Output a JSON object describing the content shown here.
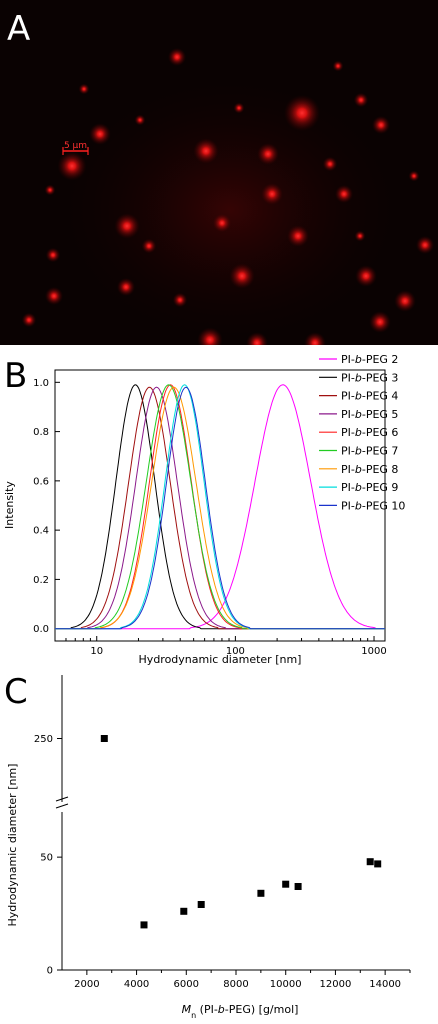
{
  "panels": {
    "a": {
      "letter": "A",
      "scalebar_label": "5 µm"
    },
    "b": {
      "letter": "B"
    },
    "c": {
      "letter": "C"
    }
  },
  "colors": {
    "micro_background": "#0a0202",
    "micro_spot": "#ff1a1a",
    "axis": "#000000"
  },
  "chart_data": [
    {
      "id": "B",
      "type": "line",
      "xscale": "log",
      "xlabel": "Hydrodynamic diameter [nm]",
      "ylabel": "Intensity",
      "xlim": [
        5,
        1200
      ],
      "ylim": [
        -0.05,
        1.05
      ],
      "xticks": [
        10,
        100,
        1000
      ],
      "xtick_labels": [
        "10",
        "100",
        "1000"
      ],
      "yticks": [
        0.0,
        0.2,
        0.4,
        0.6,
        0.8,
        1.0
      ],
      "ytick_labels": [
        "0.0",
        "0.2",
        "0.4",
        "0.6",
        "0.8",
        "1.0"
      ],
      "legend_position": "top-right",
      "series": [
        {
          "name_pre": "PI-",
          "name_em": "b",
          "name_post": "-PEG 2",
          "color": "#ff00ff",
          "peak": 220,
          "amp": 0.99,
          "sigma": 0.2,
          "zero_at": 60
        },
        {
          "name_pre": "PI-",
          "name_em": "b",
          "name_post": "-PEG 3",
          "color": "#000000",
          "peak": 19,
          "amp": 0.99,
          "sigma": 0.14,
          "zero_at": 8.5
        },
        {
          "name_pre": "PI-",
          "name_em": "b",
          "name_post": "-PEG 4",
          "color": "#a01010",
          "peak": 24,
          "amp": 0.98,
          "sigma": 0.15,
          "zero_at": 10
        },
        {
          "name_pre": "PI-",
          "name_em": "b",
          "name_post": "-PEG 5",
          "color": "#8b1a8b",
          "peak": 27,
          "amp": 0.98,
          "sigma": 0.15,
          "zero_at": 11
        },
        {
          "name_pre": "PI-",
          "name_em": "b",
          "name_post": "-PEG 6",
          "color": "#ff2020",
          "peak": 34,
          "amp": 0.99,
          "sigma": 0.15,
          "zero_at": 13
        },
        {
          "name_pre": "PI-",
          "name_em": "b",
          "name_post": "-PEG 7",
          "color": "#22cc22",
          "peak": 33,
          "amp": 0.99,
          "sigma": 0.16,
          "zero_at": 12
        },
        {
          "name_pre": "PI-",
          "name_em": "b",
          "name_post": "-PEG 8",
          "color": "#ff9900",
          "peak": 36,
          "amp": 0.98,
          "sigma": 0.16,
          "zero_at": 13.5
        },
        {
          "name_pre": "PI-",
          "name_em": "b",
          "name_post": "-PEG 9",
          "color": "#00dddd",
          "peak": 43,
          "amp": 0.99,
          "sigma": 0.14,
          "zero_at": 17
        },
        {
          "name_pre": "PI-",
          "name_em": "b",
          "name_post": "-PEG 10",
          "color": "#1a33cc",
          "peak": 44,
          "amp": 0.98,
          "sigma": 0.14,
          "zero_at": 17
        }
      ]
    },
    {
      "id": "C",
      "type": "scatter",
      "xlabel_pre": "M",
      "xlabel_sub": "n",
      "xlabel_mid": " (PI-",
      "xlabel_em": "b",
      "xlabel_post": "-PEG) [g/mol]",
      "ylabel": "Hydrodynamic diameter [nm]",
      "xlim": [
        1000,
        15000
      ],
      "xticks": [
        2000,
        4000,
        6000,
        8000,
        10000,
        12000,
        14000
      ],
      "xtick_labels": [
        "2000",
        "4000",
        "6000",
        "8000",
        "10000",
        "12000",
        "14000"
      ],
      "ylim_lower": [
        0,
        70
      ],
      "ylim_upper": [
        200,
        300
      ],
      "yticks": [
        0,
        50,
        250
      ],
      "ytick_labels": [
        "0",
        "50",
        "250"
      ],
      "broken_y_axis": true,
      "points": [
        {
          "x": 2700,
          "y": 250
        },
        {
          "x": 4300,
          "y": 20
        },
        {
          "x": 5900,
          "y": 26
        },
        {
          "x": 6600,
          "y": 29
        },
        {
          "x": 9000,
          "y": 34
        },
        {
          "x": 10000,
          "y": 38
        },
        {
          "x": 10500,
          "y": 37
        },
        {
          "x": 13400,
          "y": 48
        },
        {
          "x": 13700,
          "y": 47
        }
      ]
    }
  ]
}
